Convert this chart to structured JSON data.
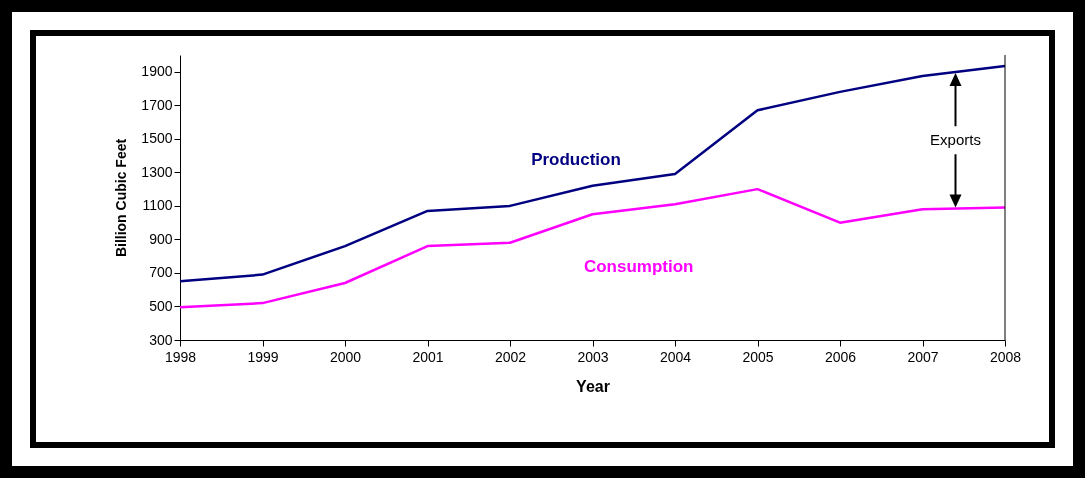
{
  "chart_data": {
    "type": "line",
    "xlabel": "Year",
    "ylabel": "Billion Cubic Feet",
    "x": [
      1998,
      1999,
      2000,
      2001,
      2002,
      2003,
      2004,
      2005,
      2006,
      2007,
      2008
    ],
    "series": [
      {
        "name": "Production",
        "color": "#000080",
        "values": [
          650,
          690,
          860,
          1070,
          1100,
          1220,
          1290,
          1670,
          1780,
          1875,
          1935
        ]
      },
      {
        "name": "Consumption",
        "color": "#ff00ff",
        "values": [
          495,
          520,
          640,
          860,
          880,
          1050,
          1110,
          1200,
          1000,
          1080,
          1090
        ]
      }
    ],
    "xlim": [
      1998,
      2008
    ],
    "xticks": [
      1998,
      1999,
      2000,
      2001,
      2002,
      2003,
      2004,
      2005,
      2006,
      2007,
      2008
    ],
    "ylim": [
      300,
      2000
    ],
    "yticks": [
      300,
      500,
      700,
      900,
      1100,
      1300,
      1500,
      1700,
      1900
    ],
    "grid": false,
    "marker": "none",
    "line_style": "solid",
    "annotations": [
      "Exports"
    ]
  }
}
